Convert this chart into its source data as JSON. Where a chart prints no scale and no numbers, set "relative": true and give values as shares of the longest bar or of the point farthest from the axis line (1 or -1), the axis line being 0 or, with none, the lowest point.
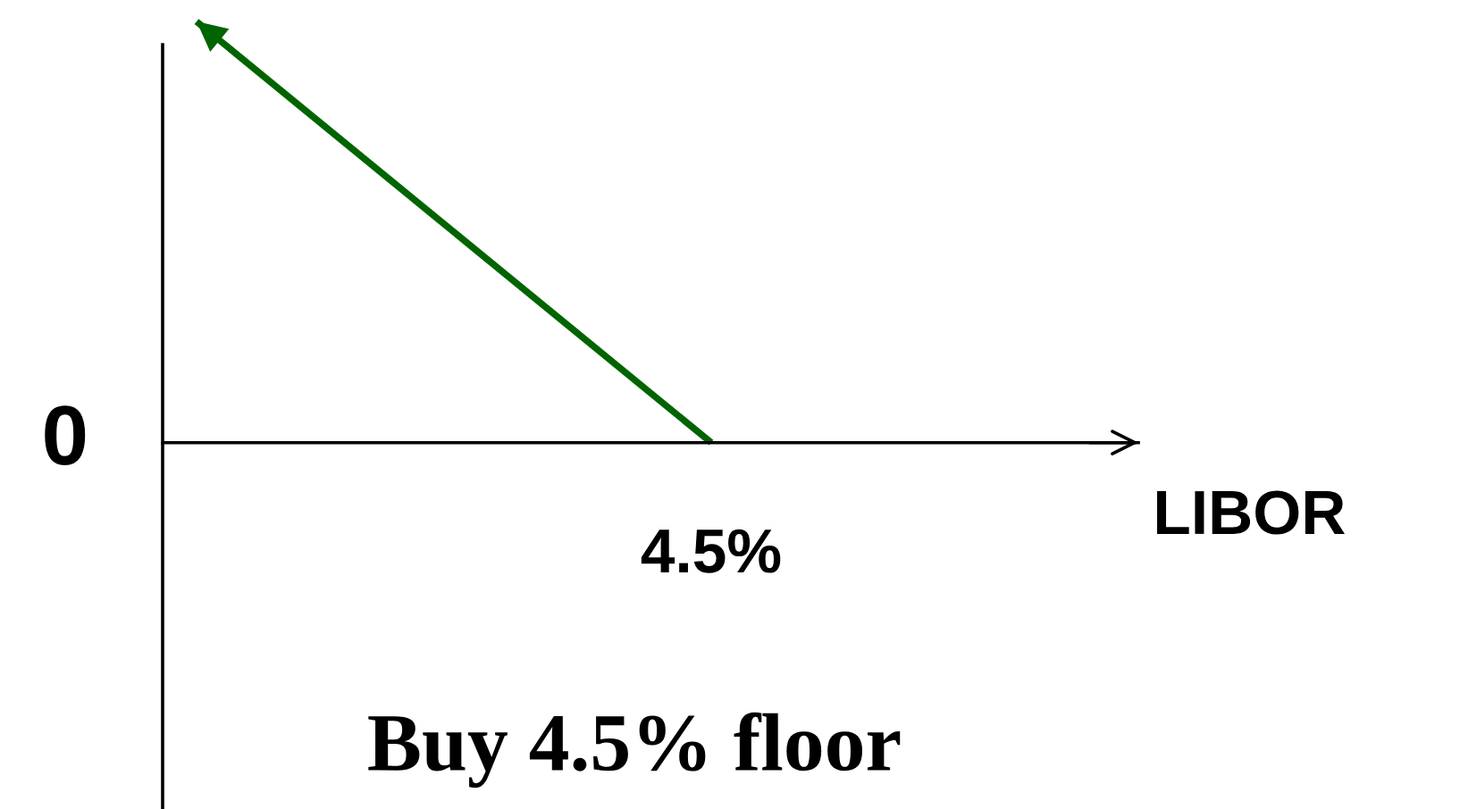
{
  "chart_data": {
    "type": "line",
    "title": "Buy 4.5% floor",
    "xlabel": "LIBOR",
    "relative": true,
    "categories": [
      null,
      null
    ],
    "series": [
      {
        "color": "#006400",
        "values": [
          1,
          0
        ]
      }
    ],
    "annotations": [
      "0",
      "4.5%"
    ],
    "marker": "none",
    "line_style": "solid"
  }
}
